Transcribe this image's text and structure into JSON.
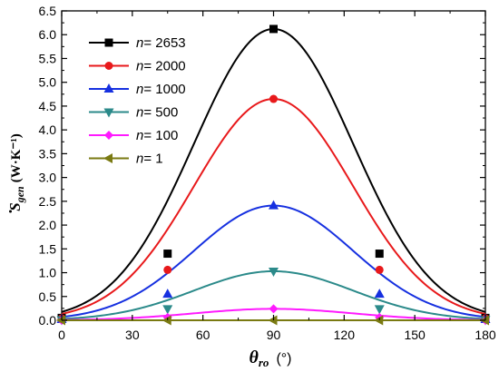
{
  "chart_data": {
    "type": "line",
    "xlabel": {
      "symbol": "θ",
      "subscript": "ro",
      "unit": "(°)"
    },
    "ylabel": {
      "symbol": "S",
      "subscript": "gen",
      "unit": "(W·K⁻¹)"
    },
    "xlim": [
      0,
      180
    ],
    "ylim": [
      0,
      6.5
    ],
    "x_ticks": [
      0,
      30,
      60,
      90,
      120,
      150,
      180
    ],
    "y_ticks": [
      0.0,
      0.5,
      1.0,
      1.5,
      2.0,
      2.5,
      3.0,
      3.5,
      4.0,
      4.5,
      5.0,
      5.5,
      6.0,
      6.5
    ],
    "grid": false,
    "legend_position": "top-left",
    "series": [
      {
        "name": "2653",
        "marker": "square",
        "color": "#000000",
        "peak": 6.12,
        "markers": [
          {
            "x": 0,
            "y": 0.05
          },
          {
            "x": 45,
            "y": 1.4
          },
          {
            "x": 90,
            "y": 6.12
          },
          {
            "x": 135,
            "y": 1.4
          },
          {
            "x": 180,
            "y": 0.05
          }
        ]
      },
      {
        "name": "2000",
        "marker": "circle",
        "color": "#e8191b",
        "peak": 4.65,
        "markers": [
          {
            "x": 0,
            "y": 0.04
          },
          {
            "x": 45,
            "y": 1.06
          },
          {
            "x": 90,
            "y": 4.65
          },
          {
            "x": 135,
            "y": 1.06
          },
          {
            "x": 180,
            "y": 0.04
          }
        ]
      },
      {
        "name": "1000",
        "marker": "triangle-up",
        "color": "#1630e0",
        "peak": 2.41,
        "markers": [
          {
            "x": 0,
            "y": 0.02
          },
          {
            "x": 45,
            "y": 0.55
          },
          {
            "x": 90,
            "y": 2.41
          },
          {
            "x": 135,
            "y": 0.55
          },
          {
            "x": 180,
            "y": 0.02
          }
        ]
      },
      {
        "name": "500",
        "marker": "triangle-down",
        "color": "#2b8a8a",
        "peak": 1.03,
        "markers": [
          {
            "x": 0,
            "y": 0.01
          },
          {
            "x": 45,
            "y": 0.24
          },
          {
            "x": 90,
            "y": 1.03
          },
          {
            "x": 135,
            "y": 0.24
          },
          {
            "x": 180,
            "y": 0.01
          }
        ]
      },
      {
        "name": "100",
        "marker": "diamond",
        "color": "#ff1aff",
        "peak": 0.24,
        "markers": [
          {
            "x": 0,
            "y": 0.0
          },
          {
            "x": 45,
            "y": 0.06
          },
          {
            "x": 90,
            "y": 0.24
          },
          {
            "x": 135,
            "y": 0.06
          },
          {
            "x": 180,
            "y": 0.0
          }
        ]
      },
      {
        "name": "1",
        "marker": "triangle-left",
        "color": "#7a7a12",
        "peak": 0.0,
        "markers": [
          {
            "x": 0,
            "y": 0.0
          },
          {
            "x": 45,
            "y": 0.0
          },
          {
            "x": 90,
            "y": 0.0
          },
          {
            "x": 135,
            "y": 0.0
          },
          {
            "x": 180,
            "y": 0.0
          }
        ]
      }
    ]
  }
}
